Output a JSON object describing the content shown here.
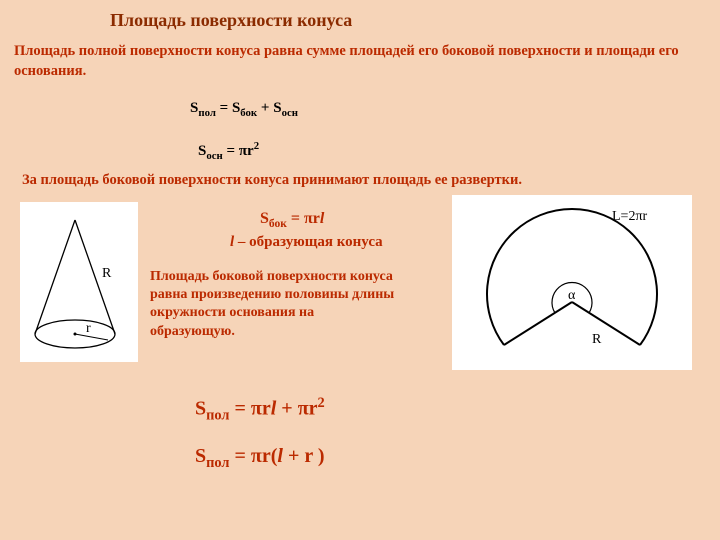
{
  "title": "Площадь поверхности конуса",
  "intro": "Площадь полной поверхности конуса равна сумме площадей его боковой поверхности и площади его основания.",
  "formula_pol_sum_html": "S<sub>пол</sub> = S<sub>бок</sub> + S<sub>осн</sub>",
  "formula_osn_html": "S<sub>осн</sub> = πr<sup>2</sup>",
  "mid_text": "За площадь боковой поверхности конуса принимают площадь ее развертки.",
  "formula_bok_html": "S<sub>бок</sub> = πr<span class='it'>l</span>",
  "generatrix_html": "l <span class='plain'>– образующая конуса</span>",
  "lateral_text": "Площадь боковой поверхности конуса равна произведению половины длины окружности основания на образующую.",
  "formula_pol_expanded_html": "S<sub>пол</sub> = πr<span class='it'>l</span> + πr<sup>2</sup>",
  "formula_pol_factored_html": "S<sub>пол</sub> = πr(<span class='it'>l</span> + r )",
  "cone": {
    "label_R": "R",
    "label_r": "r"
  },
  "sector": {
    "arc_label": "L=2πr",
    "radius_label": "R",
    "angle_label": "α"
  },
  "colors": {
    "bg": "#f6d4b8",
    "accent": "#bb2a00",
    "title": "#8b2b00",
    "black": "#000000",
    "white": "#ffffff",
    "stroke": "#000000"
  }
}
